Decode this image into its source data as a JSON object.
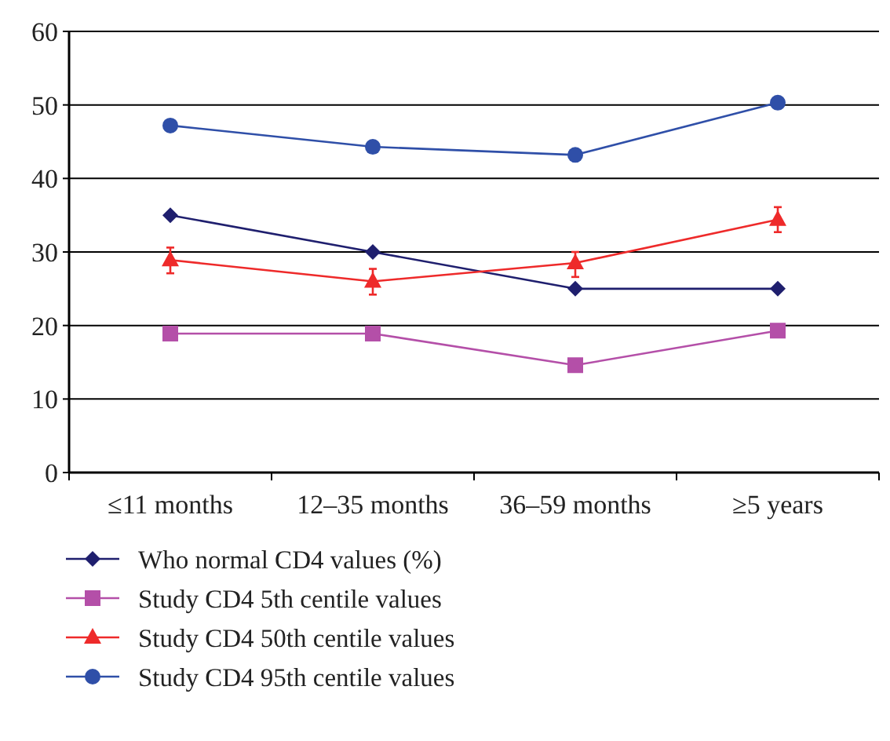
{
  "chart_data": {
    "type": "line",
    "categories": [
      "≤11 months",
      "12–35 months",
      "36–59 months",
      "≥5 years"
    ],
    "ylim": [
      0,
      60
    ],
    "yticks": [
      0,
      10,
      20,
      30,
      40,
      50,
      60
    ],
    "grid": "y",
    "legend": "bottom",
    "series": [
      {
        "name": "Who normal CD4 values (%)",
        "color": "#1f1f6e",
        "marker": "diamond",
        "values": [
          35,
          30,
          25,
          25
        ]
      },
      {
        "name": "Study CD4 5th centile values",
        "color": "#b44fa8",
        "marker": "square",
        "values": [
          18.9,
          18.9,
          14.6,
          19.3
        ]
      },
      {
        "name": "Study CD4 50th centile values",
        "color": "#ee2a2a",
        "marker": "triangle",
        "values": [
          28.9,
          26,
          28.5,
          34.4
        ],
        "errors": [
          [
            27.1,
            30.6
          ],
          [
            24.2,
            27.7
          ],
          [
            26.6,
            30
          ],
          [
            32.7,
            36.1
          ]
        ]
      },
      {
        "name": "Study CD4 95th centile values",
        "color": "#2f4fa8",
        "marker": "circle",
        "values": [
          47.2,
          44.3,
          43.2,
          50.3
        ]
      }
    ]
  }
}
